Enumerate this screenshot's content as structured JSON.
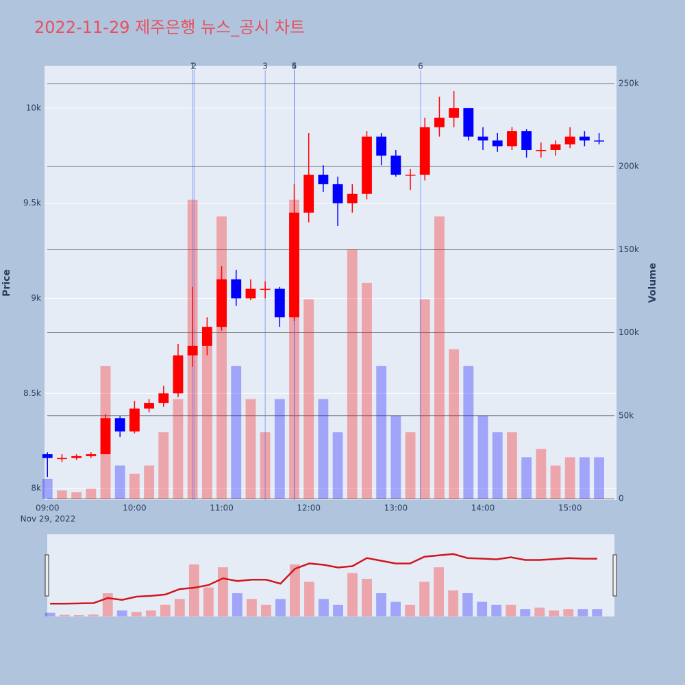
{
  "chart_data": {
    "type": "candlestick",
    "title": "2022-11-29 제주은행 뉴스_공시 차트",
    "y_title": "Price",
    "y2_title": "Volume",
    "x_subtitle": "Nov 29, 2022",
    "up_color": "#ff0000",
    "down_color": "#0000ff",
    "grid": true,
    "x": [
      "09:00",
      "09:10",
      "09:20",
      "09:30",
      "09:40",
      "09:50",
      "10:00",
      "10:10",
      "10:20",
      "10:30",
      "10:40",
      "10:50",
      "11:00",
      "11:10",
      "11:20",
      "11:30",
      "11:40",
      "11:50",
      "12:00",
      "12:10",
      "12:20",
      "12:30",
      "12:40",
      "12:50",
      "13:00",
      "13:10",
      "13:20",
      "13:30",
      "13:40",
      "13:50",
      "14:00",
      "14:10",
      "14:20",
      "14:30",
      "14:40",
      "14:50",
      "15:00",
      "15:10",
      "15:20"
    ],
    "open": [
      8180,
      8160,
      8160,
      8170,
      8180,
      8370,
      8300,
      8420,
      8450,
      8500,
      8700,
      8750,
      8850,
      9100,
      9000,
      9050,
      9050,
      8900,
      9450,
      9650,
      9600,
      9500,
      9550,
      9850,
      9750,
      9650,
      9650,
      9900,
      9950,
      10000,
      9850,
      9830,
      9800,
      9880,
      9780,
      9780,
      9810,
      9850,
      9830
    ],
    "high": [
      8190,
      8180,
      8180,
      8190,
      8390,
      8380,
      8460,
      8470,
      8540,
      8760,
      9060,
      8900,
      9170,
      9150,
      9100,
      9090,
      9060,
      9600,
      9870,
      9700,
      9640,
      9600,
      9880,
      9870,
      9780,
      9680,
      9950,
      10060,
      10090,
      10000,
      9900,
      9870,
      9900,
      9890,
      9820,
      9830,
      9900,
      9880,
      9870
    ],
    "low": [
      8060,
      8140,
      8150,
      8160,
      8180,
      8270,
      8290,
      8400,
      8430,
      8480,
      8640,
      8700,
      8830,
      8960,
      8990,
      9000,
      8850,
      8880,
      9400,
      9560,
      9380,
      9450,
      9520,
      9700,
      9640,
      9570,
      9620,
      9850,
      9900,
      9830,
      9780,
      9770,
      9780,
      9740,
      9740,
      9750,
      9790,
      9800,
      9810
    ],
    "close": [
      8160,
      8160,
      8170,
      8180,
      8370,
      8300,
      8420,
      8450,
      8500,
      8700,
      8750,
      8850,
      9100,
      9000,
      9050,
      9050,
      8900,
      9450,
      9650,
      9600,
      9500,
      9550,
      9850,
      9750,
      9650,
      9650,
      9900,
      9950,
      10000,
      9850,
      9830,
      9800,
      9880,
      9780,
      9780,
      9810,
      9850,
      9830,
      9825
    ],
    "volume": [
      12000,
      5000,
      4000,
      6000,
      80000,
      20000,
      15000,
      20000,
      40000,
      60000,
      180000,
      100000,
      170000,
      80000,
      60000,
      40000,
      60000,
      180000,
      120000,
      60000,
      40000,
      150000,
      130000,
      80000,
      50000,
      40000,
      120000,
      170000,
      90000,
      80000,
      50000,
      40000,
      40000,
      25000,
      30000,
      20000,
      25000,
      25000,
      25000
    ],
    "xlim": [
      "08:58",
      "15:32"
    ],
    "xticks": [
      "09:00",
      "10:00",
      "11:00",
      "12:00",
      "13:00",
      "14:00",
      "15:00"
    ],
    "ylim": [
      7939,
      10223
    ],
    "yticks": [
      {
        "value": 8000,
        "label": "8k"
      },
      {
        "value": 8500,
        "label": "8.5k"
      },
      {
        "value": 9000,
        "label": "9k"
      },
      {
        "value": 9500,
        "label": "9.5k"
      },
      {
        "value": 10000,
        "label": "10k"
      }
    ],
    "y2lim": [
      -800,
      260700
    ],
    "y2ticks": [
      0,
      {
        "value": 50000,
        "label": "50k"
      },
      {
        "value": 100000,
        "label": "100k"
      },
      {
        "value": 150000,
        "label": "150k"
      },
      {
        "value": 200000,
        "label": "200k"
      },
      {
        "value": 250000,
        "label": "250k"
      }
    ],
    "notes": [
      {
        "x": "10:40",
        "label": "1"
      },
      {
        "x": "10:41",
        "label": "2"
      },
      {
        "x": "11:30",
        "label": "3"
      },
      {
        "x": "11:50",
        "label": "4"
      },
      {
        "x": "11:50",
        "label": "5"
      },
      {
        "x": "13:17",
        "label": "6"
      }
    ]
  }
}
